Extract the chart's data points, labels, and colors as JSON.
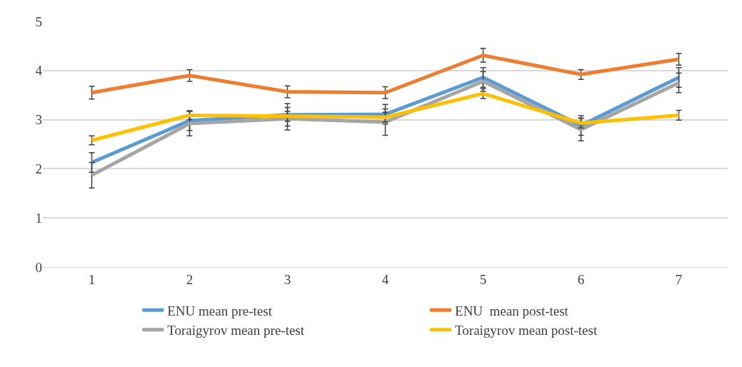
{
  "chart_data": {
    "type": "line",
    "categories": [
      "1",
      "2",
      "3",
      "4",
      "5",
      "6",
      "7"
    ],
    "series": [
      {
        "name": "ENU mean pre-test",
        "color": "#5b9bd5",
        "values": [
          2.13,
          2.98,
          3.1,
          3.11,
          3.86,
          2.88,
          3.86
        ],
        "errors": [
          0.2,
          0.2,
          0.23,
          0.2,
          0.2,
          0.2,
          0.2
        ]
      },
      {
        "name": "ENU  mean post-test",
        "color": "#ed7d31",
        "values": [
          3.55,
          3.9,
          3.57,
          3.55,
          4.31,
          3.92,
          4.23
        ],
        "errors": [
          0.13,
          0.12,
          0.12,
          0.12,
          0.14,
          0.1,
          0.12
        ]
      },
      {
        "name": "Toraigyrov mean pre-test",
        "color": "#a5a5a5",
        "values": [
          1.87,
          2.92,
          3.02,
          2.95,
          3.78,
          2.8,
          3.75
        ],
        "errors": [
          0.26,
          0.25,
          0.23,
          0.27,
          0.2,
          0.23,
          0.2
        ]
      },
      {
        "name": "Toraigyrov mean post-test",
        "color": "#ffc000",
        "values": [
          2.58,
          3.09,
          3.07,
          3.05,
          3.53,
          2.93,
          3.09
        ],
        "errors": [
          0.09,
          0.09,
          0.1,
          0.1,
          0.1,
          0.1,
          0.1
        ]
      }
    ],
    "ylim": [
      0,
      5
    ],
    "yticks": [
      0,
      1,
      2,
      3,
      4,
      5
    ],
    "grid": "y",
    "legend": "bottom",
    "marker": "none",
    "line_style": "solid"
  }
}
